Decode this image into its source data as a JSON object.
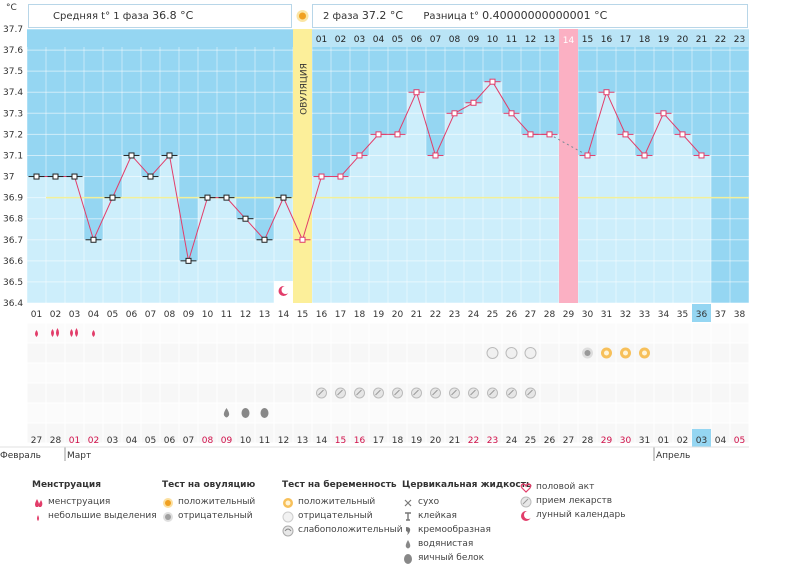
{
  "header": {
    "phase1_label": "Средняя t° 1 фаза",
    "phase1_value": "36.8 °C",
    "phase2_label": "2 фаза",
    "phase2_value": "37.2 °C",
    "diff_label": "Разница t°",
    "diff_value": "0.40000000000001 °C"
  },
  "chart_data": {
    "type": "line",
    "title": "",
    "ylabel": "°C",
    "ylim": [
      36.4,
      37.7
    ],
    "y_ticks": [
      "37.7",
      "37.6",
      "37.5",
      "37.4",
      "37.3",
      "37.2",
      "37.1",
      "37",
      "36.9",
      "36.8",
      "36.7",
      "36.6",
      "36.5",
      "36.4"
    ],
    "cycle_days": [
      "01",
      "02",
      "03",
      "04",
      "05",
      "06",
      "07",
      "08",
      "09",
      "10",
      "11",
      "12",
      "13",
      "14",
      "15",
      "16",
      "17",
      "18",
      "19",
      "20",
      "21",
      "22",
      "23",
      "24",
      "25",
      "26",
      "27",
      "28",
      "29",
      "30",
      "31",
      "32",
      "33",
      "34",
      "35",
      "36",
      "37",
      "38"
    ],
    "phase2_days": [
      "01",
      "02",
      "03",
      "04",
      "05",
      "06",
      "07",
      "08",
      "09",
      "10",
      "11",
      "12",
      "13",
      "14",
      "15",
      "16",
      "17",
      "18",
      "19",
      "20",
      "21",
      "22",
      "23"
    ],
    "temperatures": [
      37.0,
      37.0,
      37.0,
      36.7,
      36.9,
      37.1,
      37.0,
      37.1,
      36.6,
      36.9,
      36.9,
      36.8,
      36.7,
      36.9,
      36.7,
      37.0,
      37.0,
      37.1,
      37.2,
      37.2,
      37.4,
      37.1,
      37.3,
      37.35,
      37.45,
      37.3,
      37.2,
      37.2,
      null,
      37.1,
      37.4,
      37.2,
      37.1,
      37.3,
      37.2,
      37.1,
      null,
      null
    ],
    "coverline": 36.9,
    "ovulation_day": 15,
    "ovulation_label": "ОВУЛЯЦИЯ",
    "highlight_day": 29,
    "highlight_phase2_label": "14",
    "current_day": 36,
    "dates": [
      "27",
      "28",
      "01",
      "02",
      "03",
      "04",
      "05",
      "06",
      "07",
      "08",
      "09",
      "10",
      "11",
      "12",
      "13",
      "14",
      "15",
      "16",
      "17",
      "18",
      "19",
      "20",
      "21",
      "22",
      "23",
      "24",
      "25",
      "26",
      "27",
      "28",
      "29",
      "30",
      "31",
      "01",
      "02",
      "03",
      "04",
      "05"
    ],
    "weekend_flags": [
      0,
      0,
      1,
      1,
      0,
      0,
      0,
      0,
      0,
      1,
      1,
      0,
      0,
      0,
      0,
      0,
      1,
      1,
      0,
      0,
      0,
      0,
      0,
      1,
      1,
      0,
      0,
      0,
      0,
      0,
      1,
      1,
      0,
      0,
      0,
      0,
      0,
      1
    ],
    "months": [
      {
        "label": "Февраль",
        "start": 1
      },
      {
        "label": "Март",
        "start": 3
      },
      {
        "label": "Апрель",
        "start": 34
      }
    ]
  },
  "markers": {
    "menstruation_days": [
      1,
      2,
      3,
      4
    ],
    "menstruation_heavy_days": [
      2,
      3
    ],
    "preg_weak_days": [
      25,
      26,
      27
    ],
    "preg_pos_days": [
      31,
      32,
      33
    ],
    "ovu_neg_days": [
      30
    ],
    "pill_days": [
      16,
      17,
      18,
      19,
      20,
      21,
      22,
      23,
      24,
      25,
      26,
      27
    ],
    "fluid_days": [
      11,
      12,
      13
    ],
    "moon_day": 14
  },
  "legend": {
    "menstruation": {
      "title": "Менструация",
      "items": [
        "менструация",
        "небольшие выделения"
      ]
    },
    "ovulation_test": {
      "title": "Тест на овуляцию",
      "items": [
        "положительный",
        "отрицательный"
      ]
    },
    "pregnancy_test": {
      "title": "Тест на беременность",
      "items": [
        "положительный",
        "отрицательный",
        "слабоположительный"
      ]
    },
    "cervical": {
      "title": "Цервикальная жидкость",
      "items": [
        "сухо",
        "клейкая",
        "кремообразная",
        "водянистая",
        "яичный белок"
      ]
    },
    "other": {
      "items": [
        "половой акт",
        "прием лекарств",
        "лунный календарь"
      ]
    }
  },
  "colors": {
    "bg": "#95d6f2",
    "bar": "#cdeefb",
    "line": "#e23d6a",
    "coverline": "#f3f09a",
    "ovulation": "#fcef9a",
    "highlight": "#fbb0c3",
    "weekend": "#d0104a"
  }
}
